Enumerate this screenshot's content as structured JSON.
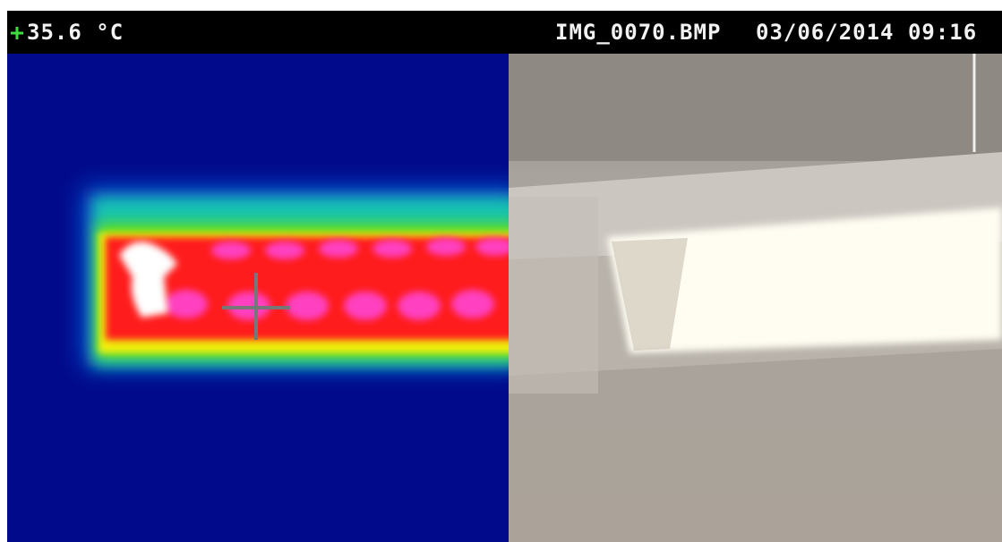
{
  "status_bar": {
    "temperature": "35.6 °C",
    "filename": "IMG_0070.BMP",
    "timestamp": "03/06/2014 09:16"
  }
}
